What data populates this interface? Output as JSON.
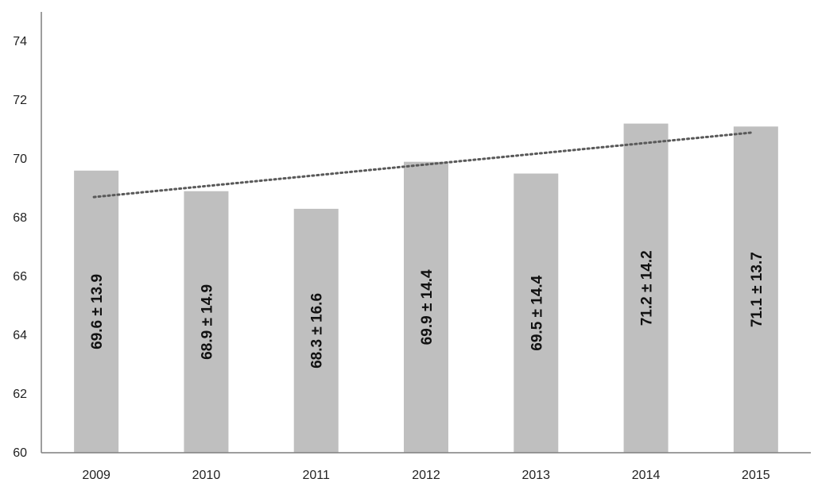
{
  "chart_data": {
    "type": "bar",
    "categories": [
      "2009",
      "2010",
      "2011",
      "2012",
      "2013",
      "2014",
      "2015"
    ],
    "values": [
      69.6,
      68.9,
      68.3,
      69.9,
      69.5,
      71.2,
      71.1
    ],
    "bar_labels": [
      "69.6 ± 13.9",
      "68.9 ± 14.9",
      "68.3 ± 16.6",
      "69.9 ± 14.4",
      "69.5 ± 14.4",
      "71.2 ± 14.2",
      "71.1 ± 13.7"
    ],
    "ylim": [
      60,
      74
    ],
    "yticks": [
      60,
      62,
      64,
      66,
      68,
      70,
      72,
      74
    ],
    "ytick_labels": [
      "60",
      "62",
      "64",
      "66",
      "68",
      "70",
      "72",
      "74"
    ],
    "trendline": {
      "style": "dotted",
      "type": "linear",
      "start": 68.7,
      "end": 70.9
    },
    "grid": false,
    "colors": {
      "bar": "#bfbfbf",
      "trendline": "#595959",
      "axis": "#7f7f7f"
    }
  }
}
